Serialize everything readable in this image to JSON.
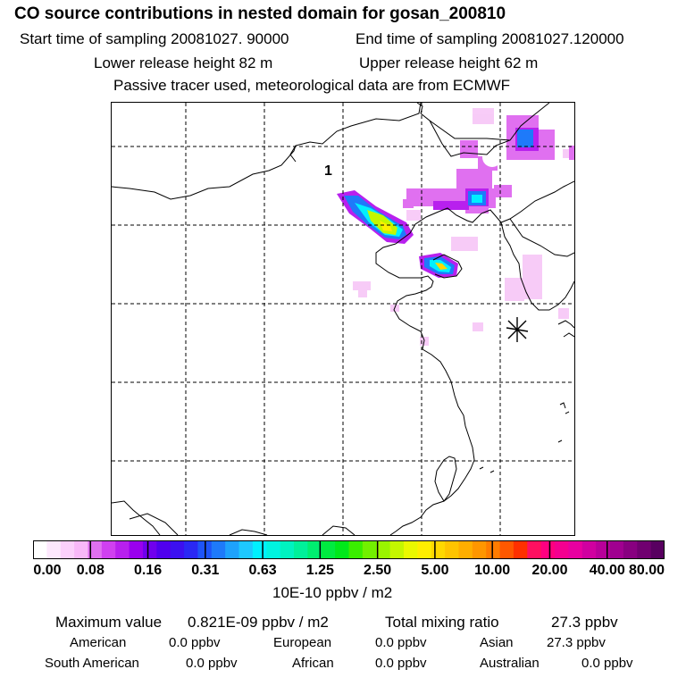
{
  "header": {
    "title": "CO  source contributions in nested domain for gosan_200810",
    "start_sampling": "Start time of sampling 20081027. 90000",
    "end_sampling": "End time of sampling 20081027.120000",
    "lower_release": "Lower release height   82 m",
    "upper_release": "Upper release height   62 m",
    "tracer_note": "Passive tracer used, meteorological data are from ECMWF"
  },
  "map": {
    "source_label": "1",
    "receptor_marker": "receptor-asterisk"
  },
  "colorbar": {
    "tick_labels": [
      "0.00",
      "0.08",
      "0.16",
      "0.31",
      "0.63",
      "1.25",
      "2.50",
      "5.00",
      "10.00",
      "20.00",
      "40.00",
      "80.00"
    ],
    "colors": [
      "#ffffff",
      "#fde8fd",
      "#fbd0fb",
      "#f8b8f8",
      "#e070f0",
      "#d040f0",
      "#b820ee",
      "#9a00ee",
      "#7000ee",
      "#5000ee",
      "#3c10f0",
      "#2a28f4",
      "#1e54f8",
      "#1e7afa",
      "#1ea2fc",
      "#1ec8fe",
      "#00f0ff",
      "#00f4e0",
      "#00f2c0",
      "#00f09a",
      "#00ee70",
      "#00ea40",
      "#00e81a",
      "#3aee00",
      "#72f000",
      "#9af400",
      "#c4f600",
      "#eaf800",
      "#ffee00",
      "#ffd800",
      "#ffc400",
      "#ffae00",
      "#ff9600",
      "#ff7c00",
      "#ff5800",
      "#ff3000",
      "#ff1060",
      "#ff0080",
      "#f40090",
      "#e800a0",
      "#d000a0",
      "#b8009a",
      "#a00090",
      "#880080",
      "#700070",
      "#580060"
    ],
    "units": "10E-10 ppbv / m2"
  },
  "summary": {
    "max_label": "Maximum value",
    "max_value": "0.821E-09 ppbv / m2",
    "total_label": "Total mixing ratio",
    "total_value": "27.3 ppbv",
    "rows": [
      [
        {
          "name": "American",
          "value": "0.0 ppbv"
        },
        {
          "name": "European",
          "value": "0.0 ppbv"
        },
        {
          "name": "Asian",
          "value": "27.3 ppbv"
        }
      ],
      [
        {
          "name": "South American",
          "value": "0.0 ppbv"
        },
        {
          "name": "African",
          "value": "0.0 ppbv"
        },
        {
          "name": "Australian",
          "value": "0.0 ppbv"
        }
      ]
    ]
  }
}
